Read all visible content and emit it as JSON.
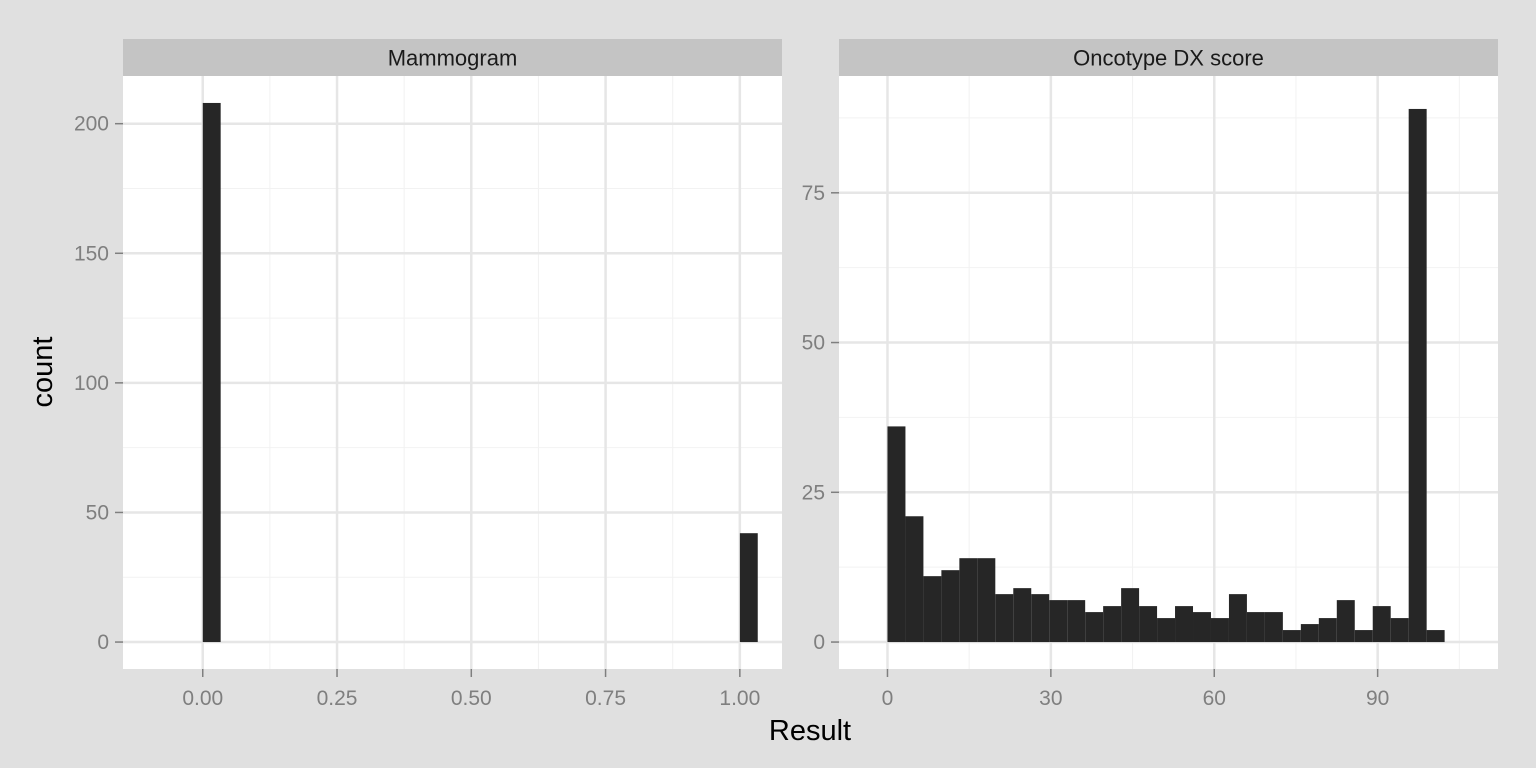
{
  "figure": {
    "xlabel": "Result",
    "ylabel": "count"
  },
  "colors": {
    "outer_background": "#e0e0e0",
    "panel_background": "#ffffff",
    "strip_background": "#c4c4c4",
    "major_grid": "#e6e6e6",
    "minor_grid": "#f2f2f2",
    "bar_fill": "#262626",
    "tick_label": "#7f7f7f",
    "axis_title": "#000000"
  },
  "chart_data": [
    {
      "type": "bar",
      "title": "Mammogram",
      "xlim": [
        -0.1485,
        1.0785
      ],
      "ylim": [
        -10.4,
        218.4
      ],
      "x_ticks": [
        0,
        0.25,
        0.5,
        0.75,
        1
      ],
      "x_tick_labels": [
        "0.00",
        "0.25",
        "0.50",
        "0.75",
        "1.00"
      ],
      "y_ticks": [
        0,
        50,
        100,
        150,
        200
      ],
      "y_tick_labels": [
        "0",
        "50",
        "100",
        "150",
        "200"
      ],
      "grid": true,
      "bar_width": 0.0333,
      "bars": [
        {
          "x": 0.0167,
          "value": 208
        },
        {
          "x": 1.0167,
          "value": 42
        }
      ]
    },
    {
      "type": "bar",
      "title": "Oncotype DX score",
      "xlim": [
        -8.9,
        112.1
      ],
      "ylim": [
        -4.5,
        94.5
      ],
      "x_ticks": [
        0,
        30,
        60,
        90
      ],
      "x_tick_labels": [
        "0",
        "30",
        "60",
        "90"
      ],
      "y_ticks": [
        0,
        25,
        50,
        75
      ],
      "y_tick_labels": [
        "0",
        "25",
        "50",
        "75"
      ],
      "grid": true,
      "bar_width": 3.3,
      "bars": [
        {
          "x": 1.65,
          "value": 36
        },
        {
          "x": 4.95,
          "value": 21
        },
        {
          "x": 8.25,
          "value": 11
        },
        {
          "x": 11.55,
          "value": 12
        },
        {
          "x": 14.85,
          "value": 14
        },
        {
          "x": 18.15,
          "value": 14
        },
        {
          "x": 21.45,
          "value": 8
        },
        {
          "x": 24.75,
          "value": 9
        },
        {
          "x": 28.05,
          "value": 8
        },
        {
          "x": 31.35,
          "value": 7
        },
        {
          "x": 34.65,
          "value": 7
        },
        {
          "x": 37.95,
          "value": 5
        },
        {
          "x": 41.25,
          "value": 6
        },
        {
          "x": 44.55,
          "value": 9
        },
        {
          "x": 47.85,
          "value": 6
        },
        {
          "x": 51.15,
          "value": 4
        },
        {
          "x": 54.45,
          "value": 6
        },
        {
          "x": 57.75,
          "value": 5
        },
        {
          "x": 61.05,
          "value": 4
        },
        {
          "x": 64.35,
          "value": 8
        },
        {
          "x": 67.65,
          "value": 5
        },
        {
          "x": 70.95,
          "value": 5
        },
        {
          "x": 74.25,
          "value": 2
        },
        {
          "x": 77.55,
          "value": 3
        },
        {
          "x": 80.85,
          "value": 4
        },
        {
          "x": 84.15,
          "value": 7
        },
        {
          "x": 87.45,
          "value": 2
        },
        {
          "x": 90.75,
          "value": 6
        },
        {
          "x": 94.05,
          "value": 4
        },
        {
          "x": 97.35,
          "value": 89
        },
        {
          "x": 100.65,
          "value": 2
        }
      ]
    }
  ]
}
